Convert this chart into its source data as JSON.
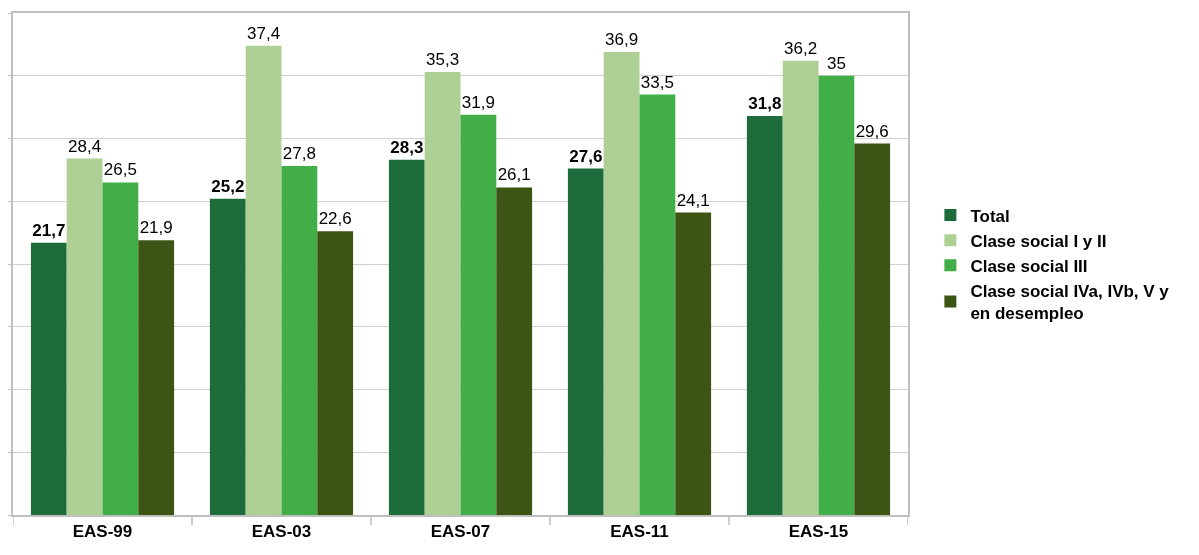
{
  "chart_data": {
    "type": "bar",
    "categories": [
      "EAS-99",
      "EAS-03",
      "EAS-07",
      "EAS-11",
      "EAS-15"
    ],
    "series": [
      {
        "name": "Total",
        "color": "#1e6b3b",
        "values": [
          21.7,
          25.2,
          28.3,
          27.6,
          31.8
        ],
        "value_labels": [
          "21,7",
          "25,2",
          "28,3",
          "27,6",
          "31,8"
        ]
      },
      {
        "name": "Clase social I y II",
        "color": "#aed094",
        "values": [
          28.4,
          37.4,
          35.3,
          36.9,
          36.2
        ],
        "value_labels": [
          "28,4",
          "37,4",
          "35,3",
          "36,9",
          "36,2"
        ]
      },
      {
        "name": "Clase social III",
        "color": "#41ae48",
        "values": [
          26.5,
          27.8,
          31.9,
          33.5,
          35
        ],
        "value_labels": [
          "26,5",
          "27,8",
          "31,9",
          "33,5",
          "35"
        ]
      },
      {
        "name": "Clase social IVa, IVb, V y en desempleo",
        "color": "#3c5514",
        "values": [
          21.9,
          22.6,
          26.1,
          24.1,
          29.6
        ],
        "value_labels": [
          "21,9",
          "22,6",
          "26,1",
          "24,1",
          "29,6"
        ]
      }
    ],
    "ylim": [
      0,
      40
    ],
    "yticks": [
      {
        "value": 0,
        "label": null
      },
      {
        "value": 5,
        "label": null
      },
      {
        "value": 10,
        "label": null
      },
      {
        "value": 15,
        "label": null
      },
      {
        "value": 20,
        "label": null
      },
      {
        "value": 25,
        "label": null
      },
      {
        "value": 30,
        "label": null
      },
      {
        "value": 35,
        "label": null
      },
      {
        "value": 40,
        "label": null
      }
    ],
    "tick_labels": "x",
    "grid": "y",
    "legend": "right"
  }
}
